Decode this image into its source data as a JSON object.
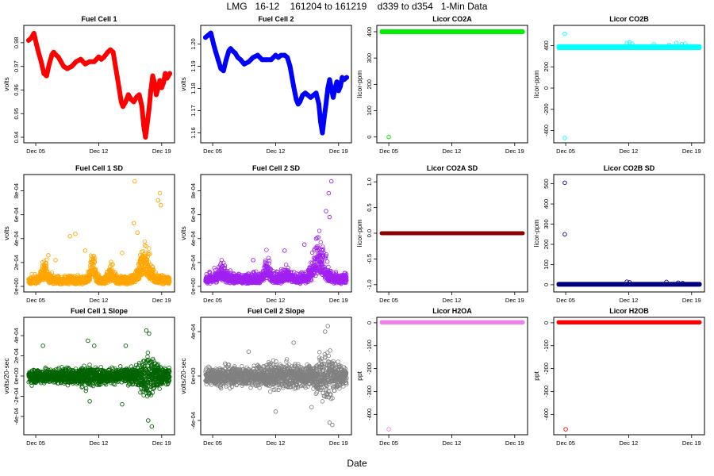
{
  "figure": {
    "title": "LMG   16-12    161204 to 161219    d339 to d354   1-Min Data",
    "xlabel": "Date"
  },
  "chart_data": [
    {
      "id": "fc1",
      "type": "scatter",
      "title": "Fuel Cell 1",
      "ylabel": "volts",
      "color": "#ff0000",
      "xrange": [
        4.2,
        19.9
      ],
      "xticks": [
        5,
        12,
        19
      ],
      "xticklabels": [
        "Dec 05",
        "Dec 12",
        "Dec 19"
      ],
      "ylim": [
        0.939,
        0.986
      ],
      "yticks": [
        0.94,
        0.95,
        0.96,
        0.97,
        0.98
      ],
      "yticklabels": [
        "0.94",
        "0.95",
        "0.96",
        "0.97",
        "0.98"
      ],
      "mode": "line",
      "lw": 6,
      "x": [
        4.2,
        4.5,
        4.8,
        5.1,
        5.3,
        5.6,
        5.9,
        6.2,
        6.5,
        6.8,
        7.0,
        7.2,
        7.5,
        7.8,
        8.1,
        8.5,
        9.0,
        9.5,
        10.0,
        10.5,
        11.0,
        11.5,
        12.0,
        12.3,
        12.6,
        13.0,
        13.3,
        13.6,
        14.0,
        14.3,
        14.5,
        14.7,
        15.0,
        15.3,
        15.6,
        15.9,
        16.2,
        16.5,
        16.8,
        17.0,
        17.2,
        17.4,
        17.6,
        17.8,
        18.0,
        18.2,
        18.4,
        18.6,
        18.8,
        19.0,
        19.2,
        19.4,
        19.6,
        19.9
      ],
      "y": [
        0.981,
        0.982,
        0.984,
        0.979,
        0.976,
        0.972,
        0.967,
        0.966,
        0.971,
        0.975,
        0.976,
        0.975,
        0.974,
        0.972,
        0.97,
        0.969,
        0.97,
        0.972,
        0.973,
        0.971,
        0.972,
        0.972,
        0.974,
        0.973,
        0.974,
        0.976,
        0.977,
        0.976,
        0.967,
        0.96,
        0.955,
        0.953,
        0.955,
        0.958,
        0.956,
        0.955,
        0.957,
        0.958,
        0.953,
        0.945,
        0.94,
        0.946,
        0.952,
        0.96,
        0.966,
        0.963,
        0.958,
        0.961,
        0.964,
        0.961,
        0.963,
        0.967,
        0.965,
        0.967
      ]
    },
    {
      "id": "fc2",
      "type": "scatter",
      "title": "Fuel Cell 2",
      "ylabel": "volts",
      "color": "#0000ff",
      "xrange": [
        4.2,
        19.9
      ],
      "xticks": [
        5,
        12,
        19
      ],
      "xticklabels": [
        "Dec 05",
        "Dec 12",
        "Dec 19"
      ],
      "ylim": [
        1.157,
        1.207
      ],
      "yticks": [
        1.16,
        1.17,
        1.18,
        1.19,
        1.2
      ],
      "yticklabels": [
        "1.16",
        "1.17",
        "1.18",
        "1.19",
        "1.20"
      ],
      "mode": "line",
      "lw": 6,
      "x": [
        4.2,
        4.5,
        4.8,
        5.1,
        5.3,
        5.6,
        5.9,
        6.2,
        6.5,
        6.8,
        7.0,
        7.2,
        7.5,
        7.8,
        8.1,
        8.5,
        9.0,
        9.5,
        10.0,
        10.5,
        11.0,
        11.5,
        12.0,
        12.3,
        12.6,
        13.0,
        13.3,
        13.6,
        14.0,
        14.3,
        14.5,
        14.7,
        15.0,
        15.3,
        15.6,
        15.9,
        16.2,
        16.5,
        16.8,
        17.0,
        17.2,
        17.4,
        17.6,
        17.8,
        18.0,
        18.2,
        18.4,
        18.6,
        18.8,
        19.0,
        19.2,
        19.4,
        19.6,
        19.9
      ],
      "y": [
        1.203,
        1.204,
        1.205,
        1.2,
        1.197,
        1.193,
        1.189,
        1.188,
        1.193,
        1.197,
        1.198,
        1.197,
        1.196,
        1.194,
        1.193,
        1.191,
        1.192,
        1.194,
        1.195,
        1.193,
        1.193,
        1.193,
        1.195,
        1.194,
        1.195,
        1.195,
        1.194,
        1.19,
        1.181,
        1.175,
        1.173,
        1.174,
        1.177,
        1.178,
        1.177,
        1.176,
        1.177,
        1.178,
        1.173,
        1.165,
        1.16,
        1.167,
        1.173,
        1.18,
        1.184,
        1.18,
        1.176,
        1.18,
        1.183,
        1.179,
        1.181,
        1.185,
        1.184,
        1.185
      ]
    },
    {
      "id": "co2a",
      "type": "scatter",
      "title": "Licor CO2A",
      "ylabel": "licor-ppm",
      "color": "#00ee00",
      "xrange": [
        4.2,
        19.9
      ],
      "xticks": [
        5,
        12,
        19
      ],
      "xticklabels": [
        "Dec 05",
        "Dec 12",
        "Dec 19"
      ],
      "ylim": [
        -10,
        412
      ],
      "yticks": [
        0,
        100,
        200,
        300,
        400
      ],
      "yticklabels": [
        "0",
        "100",
        "200",
        "300",
        "400"
      ],
      "mode": "band",
      "base": 400,
      "band": 1.5,
      "outliers": [
        [
          5.0,
          0
        ]
      ]
    },
    {
      "id": "co2b",
      "type": "scatter",
      "title": "Licor CO2B",
      "ylabel": "licor-ppm",
      "color": "#00ffff",
      "xrange": [
        4.2,
        19.9
      ],
      "xticks": [
        5,
        12,
        19
      ],
      "xticklabels": [
        "Dec 05",
        "Dec 12",
        "Dec 19"
      ],
      "ylim": [
        -485,
        560
      ],
      "yticks": [
        -400,
        -200,
        0,
        200,
        400
      ],
      "yticklabels": [
        "-400",
        "-200",
        "0",
        "200",
        "400"
      ],
      "mode": "band",
      "base": 385,
      "band": 8,
      "outliers": [
        [
          4.9,
          510
        ],
        [
          4.9,
          -470
        ],
        [
          11.8,
          425
        ],
        [
          12.1,
          430
        ],
        [
          12.4,
          418
        ],
        [
          14.8,
          412
        ],
        [
          16.5,
          405
        ],
        [
          17.3,
          425
        ],
        [
          17.9,
          412
        ],
        [
          18.3,
          418
        ]
      ]
    },
    {
      "id": "fc1sd",
      "type": "scatter",
      "title": "Fuel Cell 1 SD",
      "ylabel": "volts",
      "color": "#ffa500",
      "xrange": [
        4.2,
        19.9
      ],
      "xticks": [
        5,
        12,
        19
      ],
      "xticklabels": [
        "Dec 05",
        "Dec 12",
        "Dec 19"
      ],
      "ylim": [
        -2e-05,
        0.00091
      ],
      "yticks": [
        0,
        0.0002,
        0.0004,
        0.0006,
        0.0008
      ],
      "yticklabels": [
        "0e+00",
        "2e-04",
        "4e-04",
        "6e-04",
        "8e-04"
      ],
      "mode": "noise",
      "scale": 3e-05,
      "level": 4.5e-05,
      "bumps": [
        [
          6.0,
          0.5,
          9e-05
        ],
        [
          11.3,
          0.35,
          0.00017
        ],
        [
          13.4,
          0.4,
          6e-05
        ],
        [
          17.1,
          0.8,
          0.00018
        ]
      ],
      "outliers": [
        [
          16.0,
          0.00088
        ],
        [
          18.8,
          0.00078
        ],
        [
          18.6,
          0.00072
        ],
        [
          18.9,
          0.00068
        ],
        [
          9.4,
          0.00044
        ],
        [
          8.8,
          0.00042
        ],
        [
          15.9,
          0.00053
        ],
        [
          16.3,
          0.00045
        ],
        [
          6.4,
          0.00026
        ],
        [
          10.5,
          0.0003
        ],
        [
          7.2,
          0.00022
        ],
        [
          14.6,
          0.00028
        ]
      ]
    },
    {
      "id": "fc2sd",
      "type": "scatter",
      "title": "Fuel Cell 2 SD",
      "ylabel": "volts",
      "color": "#a020f0",
      "xrange": [
        4.2,
        19.9
      ],
      "xticks": [
        5,
        12,
        19
      ],
      "xticklabels": [
        "Dec 05",
        "Dec 12",
        "Dec 19"
      ],
      "ylim": [
        -2e-05,
        0.00091
      ],
      "yticks": [
        0,
        0.0002,
        0.0004,
        0.0006,
        0.0008
      ],
      "yticklabels": [
        "0e+00",
        "2e-04",
        "4e-04",
        "6e-04",
        "8e-04"
      ],
      "mode": "noise",
      "scale": 3e-05,
      "level": 6e-05,
      "bumps": [
        [
          6.0,
          0.6,
          6e-05
        ],
        [
          11.0,
          0.4,
          0.00012
        ],
        [
          13.2,
          0.4,
          5e-05
        ],
        [
          16.8,
          0.8,
          0.00022
        ]
      ],
      "outliers": [
        [
          18.2,
          0.00088
        ],
        [
          17.9,
          0.00078
        ],
        [
          17.6,
          0.00063
        ],
        [
          18.0,
          0.00058
        ],
        [
          15.2,
          0.00035
        ],
        [
          16.5,
          0.0004
        ],
        [
          9.5,
          0.00022
        ],
        [
          13.0,
          0.0003
        ]
      ]
    },
    {
      "id": "co2asd",
      "type": "scatter",
      "title": "Licor CO2A SD",
      "ylabel": "licor-ppm",
      "color": "#8b0000",
      "xrange": [
        4.2,
        19.9
      ],
      "xticks": [
        5,
        12,
        19
      ],
      "xticklabels": [
        "Dec 05",
        "Dec 12",
        "Dec 19"
      ],
      "ylim": [
        -1.08,
        1.08
      ],
      "yticks": [
        -1,
        -0.5,
        0,
        0.5,
        1
      ],
      "yticklabels": [
        "-1.0",
        "-0.5",
        "0.0",
        "0.5",
        "1.0"
      ],
      "mode": "band",
      "base": 0,
      "band": 0.0,
      "outliers": []
    },
    {
      "id": "co2bsd",
      "type": "scatter",
      "title": "Licor CO2B SD",
      "ylabel": "licor-ppm",
      "color": "#000080",
      "xrange": [
        4.2,
        19.9
      ],
      "xticks": [
        5,
        12,
        19
      ],
      "xticklabels": [
        "Dec 05",
        "Dec 12",
        "Dec 19"
      ],
      "ylim": [
        -20,
        530
      ],
      "yticks": [
        0,
        100,
        200,
        300,
        400,
        500
      ],
      "yticklabels": [
        "0",
        "100",
        "200",
        "300",
        "400",
        "500"
      ],
      "mode": "band",
      "base": 2,
      "band": 2,
      "outliers": [
        [
          4.9,
          505
        ],
        [
          4.9,
          250
        ],
        [
          11.8,
          15
        ],
        [
          12.1,
          12
        ],
        [
          16.2,
          14
        ],
        [
          17.5,
          10
        ],
        [
          18.0,
          8
        ]
      ]
    },
    {
      "id": "fc1slope",
      "type": "scatter",
      "title": "Fuel Cell 1 Slope",
      "ylabel": "volts/20-sec",
      "color": "#006400",
      "xrange": [
        4.2,
        19.9
      ],
      "xticks": [
        5,
        12,
        19
      ],
      "xticklabels": [
        "Dec 05",
        "Dec 12",
        "Dec 19"
      ],
      "ylim": [
        -0.00055,
        0.00055
      ],
      "yticks": [
        -0.0004,
        -0.0002,
        0,
        0.0002,
        0.0004
      ],
      "yticklabels": [
        "-4e-04",
        "-2e-04",
        "0e+00",
        "2e-04",
        "4e-04"
      ],
      "mode": "sym",
      "scale": 6e-05,
      "amp": [
        [
          17.5,
          1.0,
          1.8
        ],
        [
          10.5,
          1.0,
          0.5
        ]
      ],
      "outliers": [
        [
          17.3,
          0.00045
        ],
        [
          17.6,
          0.00042
        ],
        [
          17.9,
          -0.0005
        ],
        [
          17.5,
          -0.00044
        ],
        [
          10.8,
          0.00035
        ],
        [
          11.5,
          0.0003
        ],
        [
          11.0,
          -0.00025
        ],
        [
          14.6,
          -0.00028
        ],
        [
          15.0,
          0.0003
        ],
        [
          5.8,
          0.0003
        ]
      ]
    },
    {
      "id": "fc2slope",
      "type": "scatter",
      "title": "Fuel Cell 2 Slope",
      "ylabel": "volts/20-sec",
      "color": "#808080",
      "xrange": [
        4.2,
        19.9
      ],
      "xticks": [
        5,
        12,
        19
      ],
      "xticklabels": [
        "Dec 05",
        "Dec 12",
        "Dec 19"
      ],
      "ylim": [
        -0.0005,
        0.0005
      ],
      "yticks": [
        -0.0004,
        0,
        0.0004
      ],
      "yticklabels": [
        "-4e-04",
        "0e+00",
        "4e-04"
      ],
      "mode": "sym",
      "scale": 7e-05,
      "amp": [
        [
          17.6,
          1.0,
          1.8
        ],
        [
          12.5,
          2.0,
          0.4
        ]
      ],
      "outliers": [
        [
          17.8,
          0.00045
        ],
        [
          17.5,
          0.0004
        ],
        [
          18.0,
          -0.00042
        ],
        [
          18.3,
          -0.00044
        ],
        [
          12.0,
          -0.00032
        ],
        [
          14.0,
          0.0003
        ],
        [
          16.0,
          -0.00028
        ],
        [
          9.0,
          0.00022
        ]
      ]
    },
    {
      "id": "h2oa",
      "type": "scatter",
      "title": "Licor H2OA",
      "ylabel": "ppt",
      "color": "#ee82ee",
      "xrange": [
        4.2,
        19.9
      ],
      "xticks": [
        5,
        12,
        19
      ],
      "xticklabels": [
        "Dec 05",
        "Dec 12",
        "Dec 19"
      ],
      "ylim": [
        -475,
        10
      ],
      "yticks": [
        0,
        -100,
        -200,
        -300,
        -400
      ],
      "yticklabels": [
        "0",
        "-100",
        "-200",
        "-300",
        "-400"
      ],
      "mode": "band",
      "base": 2,
      "band": 0.5,
      "outliers": [
        [
          5.0,
          -465
        ]
      ]
    },
    {
      "id": "h2ob",
      "type": "scatter",
      "title": "Licor H2OB",
      "ylabel": "ppt",
      "color": "#ff0000",
      "xrange": [
        4.2,
        19.9
      ],
      "xticks": [
        5,
        12,
        19
      ],
      "xticklabels": [
        "Dec 05",
        "Dec 12",
        "Dec 19"
      ],
      "ylim": [
        -475,
        10
      ],
      "yticks": [
        0,
        -100,
        -200,
        -300,
        -400
      ],
      "yticklabels": [
        "0",
        "-100",
        "-200",
        "-300",
        "-400"
      ],
      "mode": "band",
      "base": 2,
      "band": 0.5,
      "outliers": [
        [
          5.0,
          -465
        ]
      ]
    }
  ]
}
